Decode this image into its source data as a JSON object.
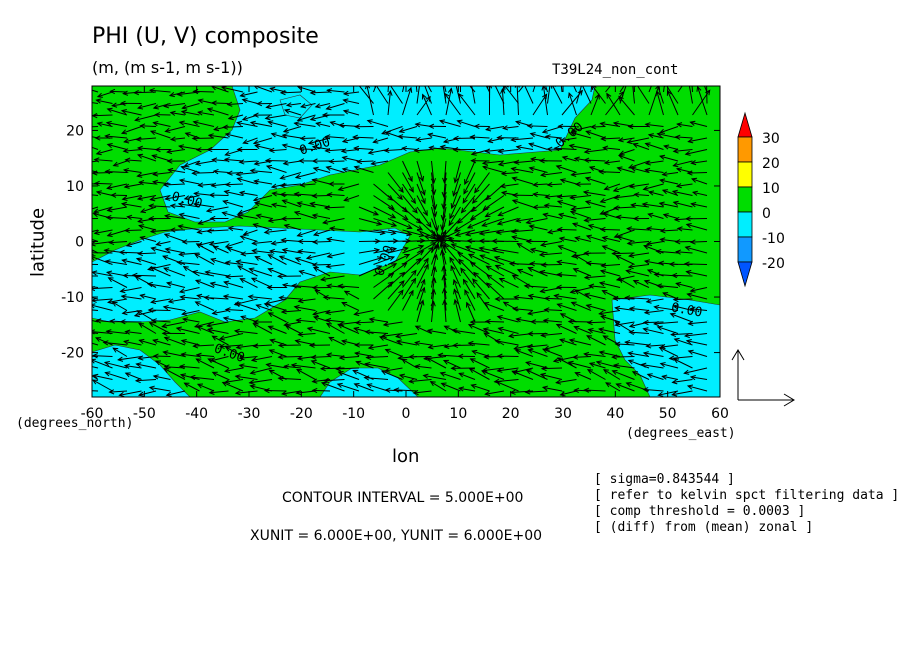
{
  "chart_data": {
    "type": "contour_vector_map",
    "title": "PHI (U, V) composite",
    "units_label": "(m, (m s-1, m s-1))",
    "run_name": "T39L24_non_cont",
    "xlabel": "lon",
    "ylabel": "latitude",
    "x_unit_label": "(degrees_east)",
    "y_unit_label": "(degrees_north)",
    "xlim": [
      -60,
      60
    ],
    "ylim": [
      -28,
      28
    ],
    "x_ticks": [
      "-60",
      "-50",
      "-40",
      "-30",
      "-20",
      "-10",
      "0",
      "10",
      "20",
      "30",
      "40",
      "50",
      "60"
    ],
    "y_ticks": [
      "20",
      "10",
      "0",
      "-10",
      "-20"
    ],
    "contour_labels": [
      "0.00",
      "0.00",
      "0.00",
      "0.00",
      "0.00",
      "0.00"
    ],
    "colorbar": {
      "levels": [
        "30",
        "20",
        "10",
        "0",
        "-10",
        "-20"
      ],
      "colors": [
        "#ff0000",
        "#ff9900",
        "#ffff00",
        "#00dd00",
        "#00eeff",
        "#1199ff",
        "#0055ff"
      ]
    },
    "colors": {
      "positive": "#00dd00",
      "negative": "#00eeff"
    },
    "contour_interval": "CONTOUR INTERVAL = 5.000E+00",
    "vector_units": "XUNIT = 6.000E+00, YUNIT = 6.000E+00",
    "notes": [
      "[ sigma=0.843544 ]",
      "[ refer to kelvin spct filtering data ]",
      "[ comp threshold = 0.0003 ]",
      "[ (diff) from (mean) zonal ]"
    ]
  }
}
